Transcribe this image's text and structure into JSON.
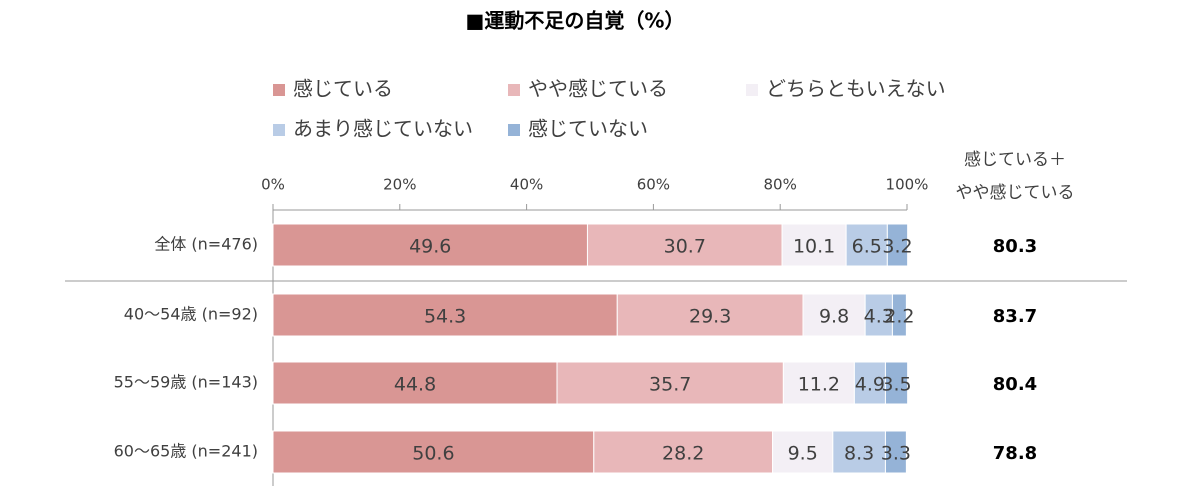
{
  "chart_data": {
    "type": "stacked-bar-horizontal",
    "title": "■運動不足の自覚（%）",
    "categories": [
      "全体 (n=476)",
      "40～54歳 (n=92)",
      "55～59歳 (n=143)",
      "60～65歳 (n=241)"
    ],
    "series": [
      {
        "name": "感じている",
        "color": "#d99694",
        "values": [
          49.6,
          54.3,
          44.8,
          50.6
        ]
      },
      {
        "name": "やや感じている",
        "color": "#e8b7b9",
        "values": [
          30.7,
          29.3,
          35.7,
          28.2
        ]
      },
      {
        "name": "どちらともいえない",
        "color": "#f3eff5",
        "values": [
          10.1,
          9.8,
          11.2,
          9.5
        ]
      },
      {
        "name": "あまり感じていない",
        "color": "#b9cce6",
        "values": [
          6.5,
          4.3,
          4.9,
          8.3
        ]
      },
      {
        "name": "感じていない",
        "color": "#95b3d7",
        "values": [
          3.2,
          2.2,
          3.5,
          3.3
        ]
      }
    ],
    "xlim": [
      0,
      100
    ],
    "xticks": [
      {
        "value": 0,
        "label": "0%"
      },
      {
        "value": 20,
        "label": "20%"
      },
      {
        "value": 40,
        "label": "40%"
      },
      {
        "value": 60,
        "label": "60%"
      },
      {
        "value": 80,
        "label": "80%"
      },
      {
        "value": 100,
        "label": "100%"
      }
    ],
    "sum_column": {
      "title_lines": [
        "感じている＋",
        "やや感じている"
      ],
      "values": [
        80.3,
        83.7,
        80.4,
        78.8
      ]
    }
  }
}
